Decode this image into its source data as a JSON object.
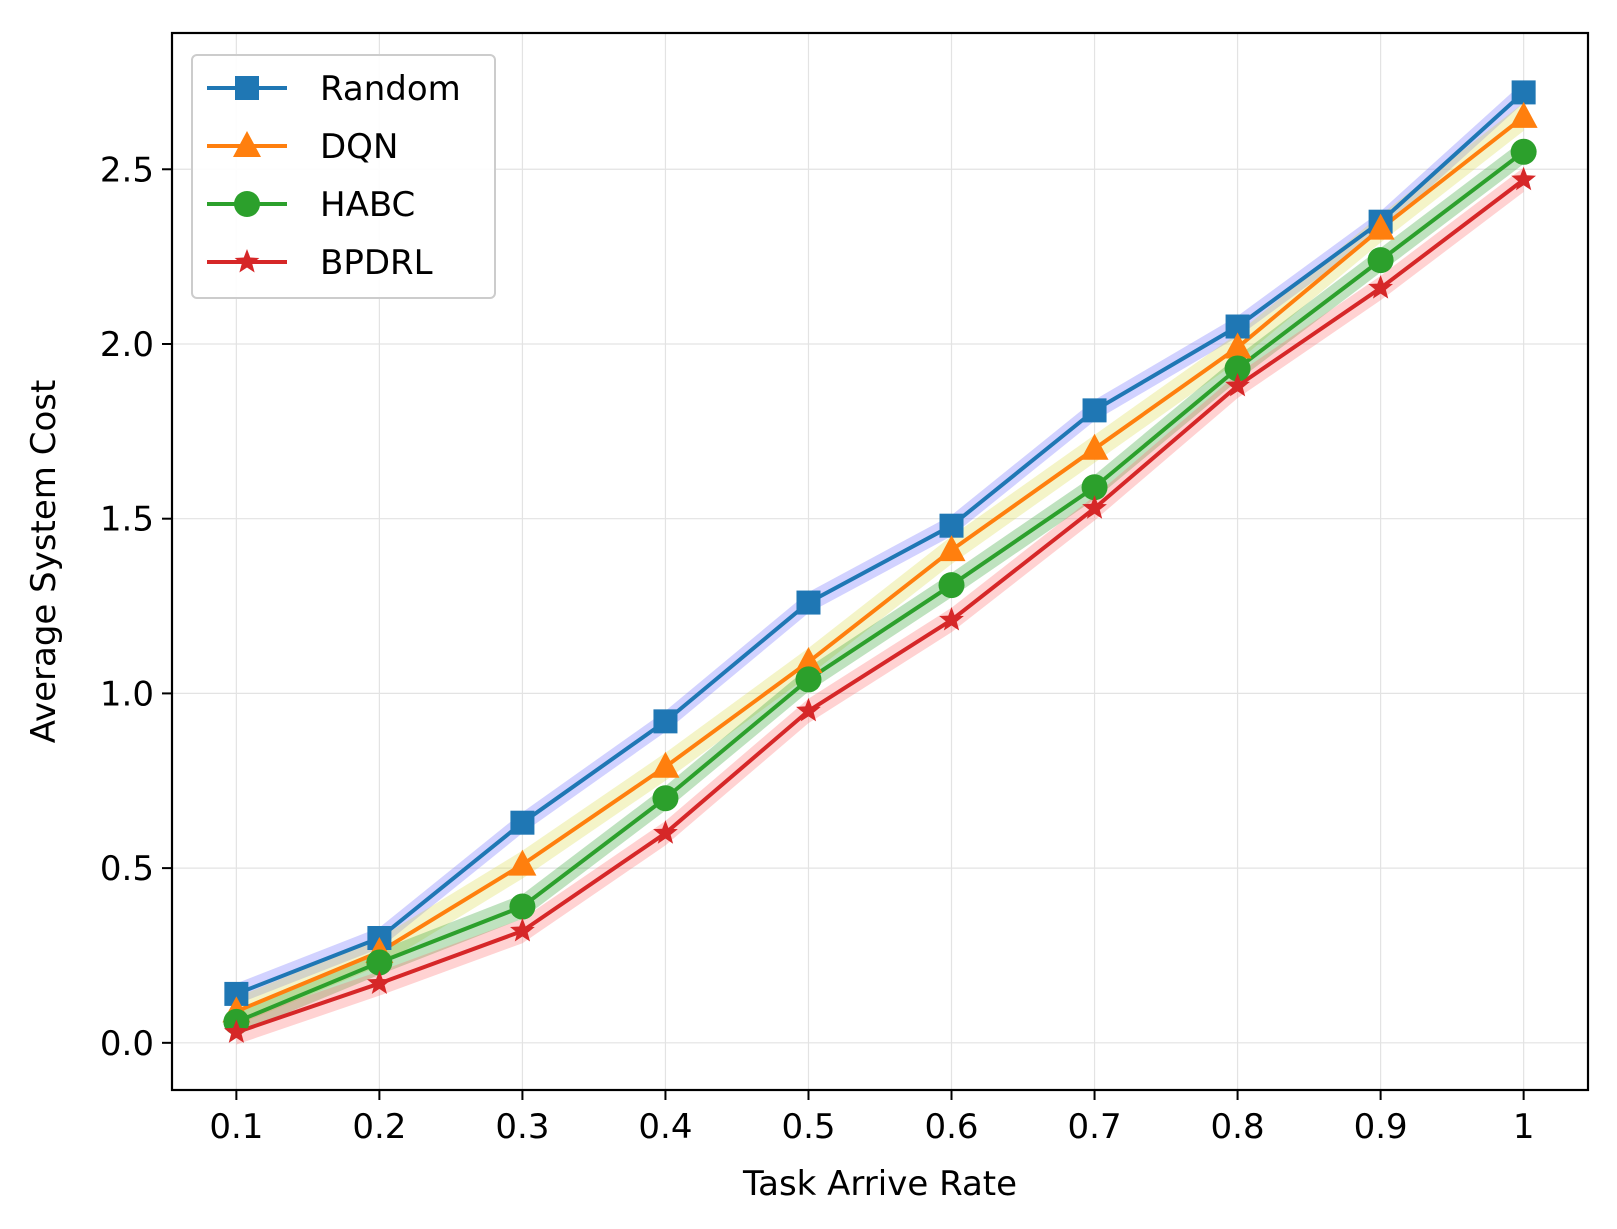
{
  "chart_data": {
    "type": "line",
    "xlabel": "Task Arrive Rate",
    "ylabel": "Average System Cost",
    "x": [
      0.1,
      0.2,
      0.3,
      0.4,
      0.5,
      0.6,
      0.7,
      0.8,
      0.9,
      1.0
    ],
    "x_tick_labels": [
      "0.1",
      "0.2",
      "0.3",
      "0.4",
      "0.5",
      "0.6",
      "0.7",
      "0.8",
      "0.9",
      "1"
    ],
    "y_ticks": [
      0.0,
      0.5,
      1.0,
      1.5,
      2.0,
      2.5
    ],
    "y_tick_labels": [
      "0.0",
      "0.5",
      "1.0",
      "1.5",
      "2.0",
      "2.5"
    ],
    "xlim": [
      0.055,
      1.045
    ],
    "ylim": [
      -0.135,
      2.89
    ],
    "grid": true,
    "legend_position": "top-left",
    "series": [
      {
        "name": "Random",
        "color": "#1f77b4",
        "band_color": "#6b6bff",
        "marker": "square",
        "values": [
          0.14,
          0.3,
          0.63,
          0.92,
          1.26,
          1.48,
          1.81,
          2.05,
          2.35,
          2.72
        ],
        "band": 0.03
      },
      {
        "name": "DQN",
        "color": "#ff7f0e",
        "band_color": "#d9d94a",
        "marker": "triangle",
        "values": [
          0.09,
          0.26,
          0.51,
          0.79,
          1.09,
          1.41,
          1.7,
          1.99,
          2.33,
          2.65
        ],
        "band": 0.04
      },
      {
        "name": "HABC",
        "color": "#2ca02c",
        "band_color": "#2ca02c",
        "marker": "circle",
        "values": [
          0.06,
          0.23,
          0.39,
          0.7,
          1.04,
          1.31,
          1.59,
          1.93,
          2.24,
          2.55
        ],
        "band": 0.035
      },
      {
        "name": "BPDRL",
        "color": "#d62728",
        "band_color": "#ff6b6b",
        "marker": "star",
        "values": [
          0.03,
          0.17,
          0.32,
          0.6,
          0.95,
          1.21,
          1.53,
          1.88,
          2.16,
          2.47
        ],
        "band": 0.035
      }
    ]
  }
}
